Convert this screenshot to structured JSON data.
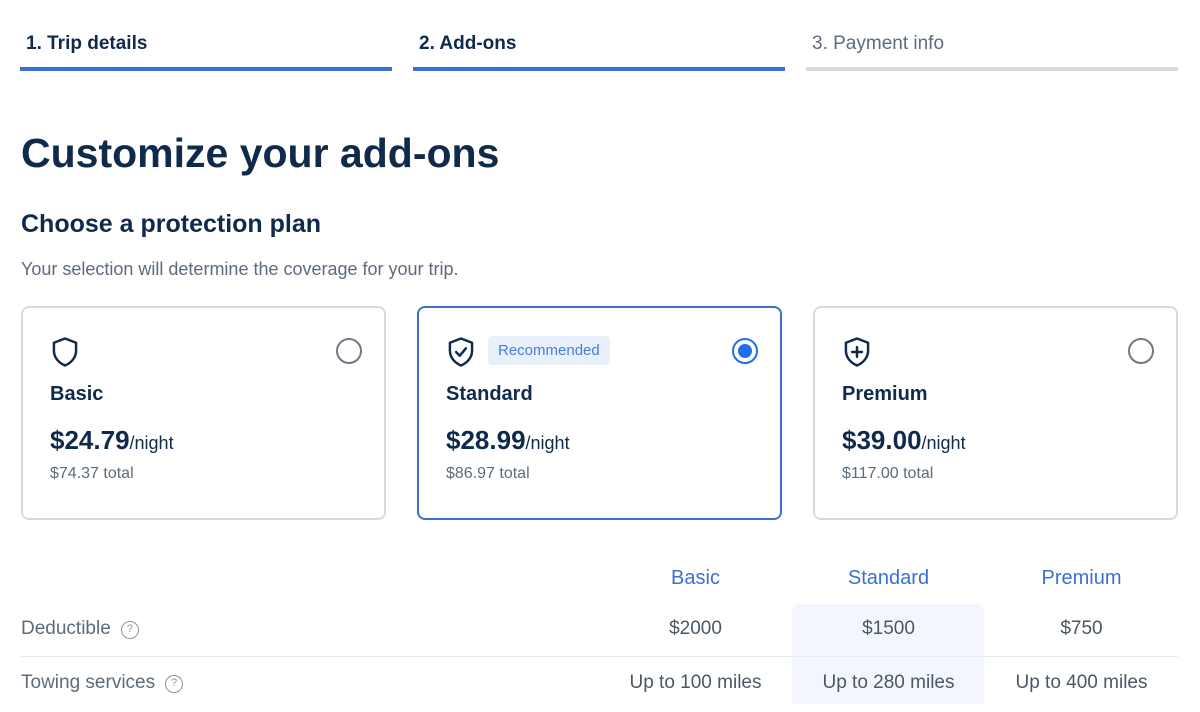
{
  "steps": [
    {
      "label": "1. Trip details",
      "state": "complete"
    },
    {
      "label": "2. Add-ons",
      "state": "current"
    },
    {
      "label": "3. Payment info",
      "state": "upcoming"
    }
  ],
  "title": "Customize your add-ons",
  "subtitle": "Choose a protection plan",
  "description": "Your selection will determine the coverage for your trip.",
  "plans": [
    {
      "name": "Basic",
      "price": "$24.79",
      "unit": "/night",
      "total": "$74.37 total",
      "icon": "shield-icon",
      "selected": false
    },
    {
      "name": "Standard",
      "price": "$28.99",
      "unit": "/night",
      "total": "$86.97 total",
      "icon": "shield-check-icon",
      "badge": "Recommended",
      "selected": true
    },
    {
      "name": "Premium",
      "price": "$39.00",
      "unit": "/night",
      "total": "$117.00 total",
      "icon": "shield-plus-icon",
      "selected": false
    }
  ],
  "table": {
    "headers": [
      "Basic",
      "Standard",
      "Premium"
    ],
    "help_glyph": "?",
    "rows": [
      {
        "label": "Deductible",
        "values": [
          "$2000",
          "$1500",
          "$750"
        ]
      },
      {
        "label": "Towing services",
        "values": [
          "Up to 100 miles",
          "Up to 280 miles",
          "Up to 400 miles"
        ]
      }
    ]
  },
  "colors": {
    "accent": "#3b6fd8",
    "radio": "#1f6fea",
    "text": "#0f2a4a",
    "muted": "#5d6b7b"
  }
}
